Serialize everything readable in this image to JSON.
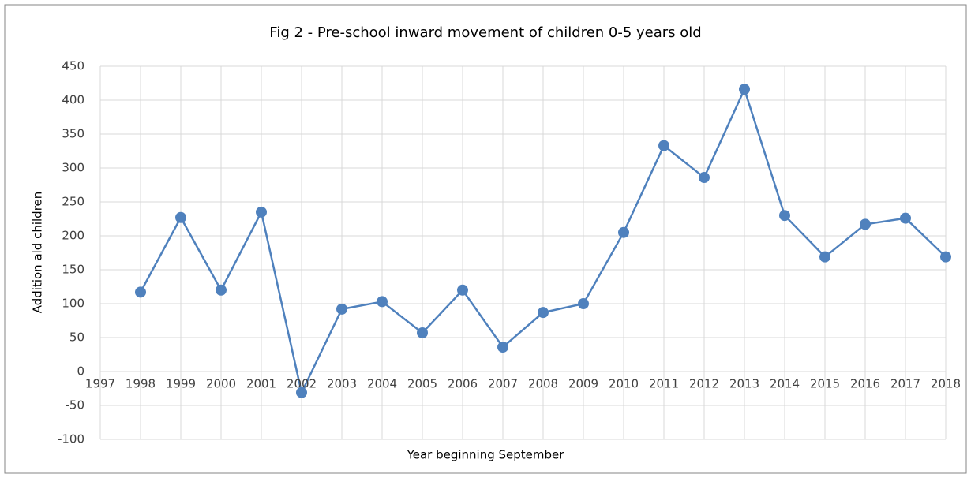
{
  "chart_data": {
    "type": "line",
    "title": "Fig 2 - Pre-school inward movement of children 0-5 years old",
    "x_label": "Year beginning September",
    "y_label": "Addition ald children",
    "x": [
      1998,
      1999,
      2000,
      2001,
      2002,
      2003,
      2004,
      2005,
      2006,
      2007,
      2008,
      2009,
      2010,
      2011,
      2012,
      2013,
      2014,
      2015,
      2016,
      2017,
      2018
    ],
    "series": [
      {
        "name": "Addition ald children",
        "color": "#4f81bd",
        "values": [
          117,
          227,
          120,
          235,
          -31,
          92,
          103,
          57,
          120,
          36,
          87,
          100,
          205,
          333,
          286,
          416,
          230,
          169,
          217,
          226,
          169
        ]
      }
    ],
    "xlim": [
      1997,
      2018
    ],
    "xticks": [
      1997,
      1998,
      1999,
      2000,
      2001,
      2002,
      2003,
      2004,
      2005,
      2006,
      2007,
      2008,
      2009,
      2010,
      2011,
      2012,
      2013,
      2014,
      2015,
      2016,
      2017,
      2018
    ],
    "ylim": [
      -100,
      450
    ],
    "yticks": [
      -100,
      -50,
      0,
      50,
      100,
      150,
      200,
      250,
      300,
      350,
      400,
      450
    ],
    "grid": true
  }
}
